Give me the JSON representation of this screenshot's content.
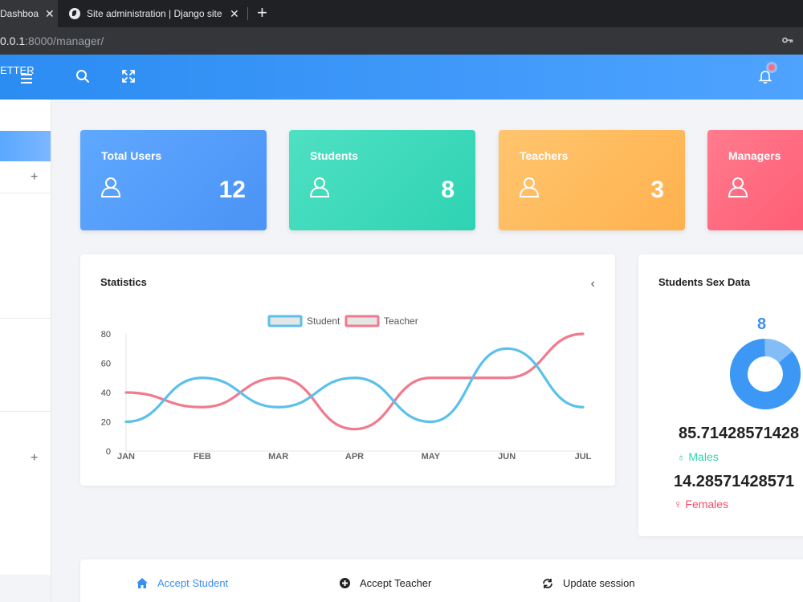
{
  "browser": {
    "tabs": [
      {
        "title": "Dashboa",
        "active": true
      },
      {
        "title": "Site administration | Django site a",
        "active": false
      }
    ],
    "url_host": "0.0.1",
    "url_rest": ":8000/manager/"
  },
  "header": {
    "brand": "ETTER"
  },
  "cards": [
    {
      "label": "Total Users",
      "value": "12",
      "color": "#5fa8ff"
    },
    {
      "label": "Students",
      "value": "8",
      "color": "#2ed3b3"
    },
    {
      "label": "Teachers",
      "value": "3",
      "color": "#ffb14e"
    },
    {
      "label": "Managers",
      "value": "",
      "color": "#ff5a72"
    }
  ],
  "statistics": {
    "title": "Statistics",
    "chart_data": {
      "type": "line",
      "categories": [
        "JAN",
        "FEB",
        "MAR",
        "APR",
        "MAY",
        "JUN",
        "JUL"
      ],
      "series": [
        {
          "name": "Student",
          "values": [
            20,
            50,
            30,
            50,
            20,
            70,
            30
          ],
          "color": "#5bc0eb"
        },
        {
          "name": "Teacher",
          "values": [
            40,
            30,
            50,
            15,
            50,
            50,
            80
          ],
          "color": "#f07a8f"
        }
      ],
      "ylim": [
        0,
        80
      ],
      "yticks": [
        0,
        20,
        40,
        60,
        80
      ],
      "legend": "top-center"
    }
  },
  "sex_data": {
    "title": "Students Sex Data",
    "count": "8",
    "males_pct": "85.71428571428",
    "males_label": "Males",
    "females_pct": "14.28571428571",
    "females_label": "Females",
    "males_color": "#3c98f4",
    "females_color": "#82bdf8",
    "males_fraction": 0.857
  },
  "actions": [
    {
      "label": "Accept Student",
      "icon": "home-icon",
      "color": "#3c8ef0"
    },
    {
      "label": "Accept Teacher",
      "icon": "plus-circle-icon",
      "color": "#222"
    },
    {
      "label": "Update session",
      "icon": "refresh-icon",
      "color": "#222"
    }
  ]
}
